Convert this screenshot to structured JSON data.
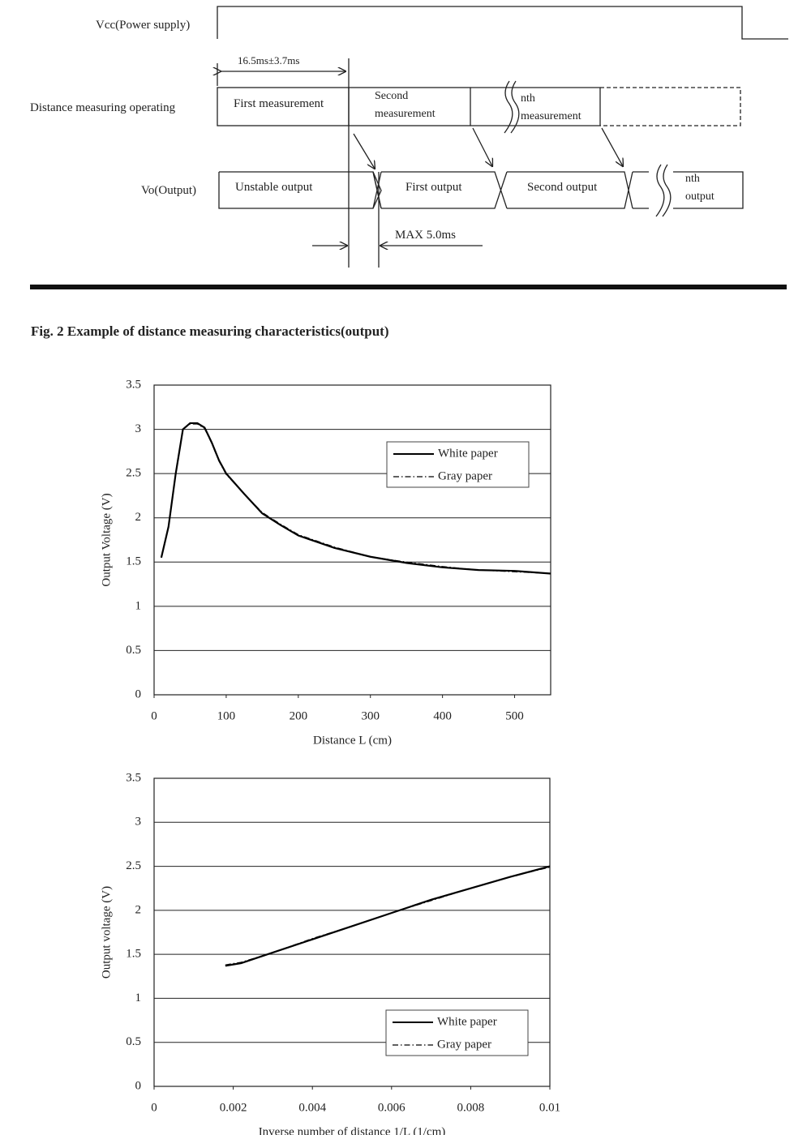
{
  "timing_diagram": {
    "vcc_label": "Vcc(Power supply)",
    "period_label": "16.5ms±3.7ms",
    "operating_label": "Distance measuring operating",
    "measurements": [
      "First measurement",
      "Second measurement",
      "nth measurement"
    ],
    "output_label": "Vo(Output)",
    "outputs": [
      "Unstable output",
      "First output",
      "Second output",
      "nth output"
    ],
    "delay_label": "MAX 5.0ms"
  },
  "figure_title": "Fig. 2 Example of distance measuring characteristics(output)",
  "chart_data": [
    {
      "type": "line",
      "x_label": "Distance L (cm)",
      "y_label": "Output Voltage (V)",
      "xlim": [
        0,
        550
      ],
      "xticks": [
        0,
        100,
        200,
        300,
        400,
        500
      ],
      "ylim": [
        0,
        3.5
      ],
      "yticks": [
        0,
        0.5,
        1,
        1.5,
        2,
        2.5,
        3,
        3.5
      ],
      "grid": "horizontal",
      "legend": "upper right",
      "x": [
        10,
        20,
        30,
        40,
        50,
        60,
        70,
        80,
        90,
        100,
        125,
        150,
        175,
        200,
        250,
        300,
        350,
        400,
        450,
        500,
        550
      ],
      "series": [
        {
          "name": "White paper",
          "color": "#000000",
          "line_style": "solid",
          "values": [
            1.55,
            1.9,
            2.5,
            3.0,
            3.07,
            3.07,
            3.02,
            2.85,
            2.65,
            2.5,
            2.27,
            2.05,
            1.92,
            1.8,
            1.66,
            1.56,
            1.49,
            1.44,
            1.41,
            1.4,
            1.37
          ]
        },
        {
          "name": "Gray paper",
          "color": "#000000",
          "line_style": "dash-dot",
          "values": [
            1.56,
            1.9,
            2.5,
            3.0,
            3.06,
            3.06,
            3.01,
            2.84,
            2.64,
            2.49,
            2.27,
            2.06,
            1.93,
            1.81,
            1.67,
            1.56,
            1.5,
            1.45,
            1.41,
            1.39,
            1.37
          ]
        }
      ]
    },
    {
      "type": "line",
      "x_label": "Inverse number of distance 1/L (1/cm)",
      "y_label": "Output voltage (V)",
      "xlim": [
        0,
        0.01
      ],
      "xticks": [
        0,
        0.002,
        0.004,
        0.006,
        0.008,
        0.01
      ],
      "ylim": [
        0,
        3.5
      ],
      "yticks": [
        0,
        0.5,
        1,
        1.5,
        2,
        2.5,
        3,
        3.5
      ],
      "grid": "horizontal",
      "legend": "lower right",
      "x": [
        0.0018,
        0.0022,
        0.003,
        0.004,
        0.005,
        0.006,
        0.007,
        0.008,
        0.009,
        0.01
      ],
      "series": [
        {
          "name": "White paper",
          "color": "#000000",
          "line_style": "solid",
          "values": [
            1.37,
            1.4,
            1.52,
            1.67,
            1.82,
            1.97,
            2.12,
            2.25,
            2.38,
            2.5
          ]
        },
        {
          "name": "Gray paper",
          "color": "#000000",
          "line_style": "dash-dot",
          "values": [
            1.38,
            1.41,
            1.52,
            1.68,
            1.82,
            1.97,
            2.11,
            2.25,
            2.38,
            2.49
          ]
        }
      ]
    }
  ]
}
